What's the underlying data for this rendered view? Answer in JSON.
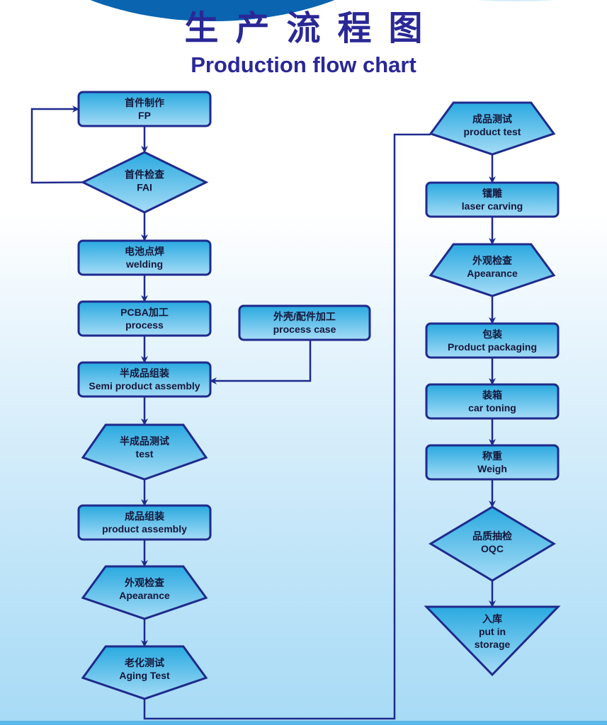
{
  "title": {
    "chinese": "生产流程图",
    "english": "Production flow chart"
  },
  "colors": {
    "node_fill_top": "#29a9e0",
    "node_fill_bottom": "#a6dcf6",
    "stroke": "#1e2a8c",
    "title": "#2a2896"
  },
  "nodes": [
    {
      "id": "fp",
      "shape": "rect",
      "cn": "首件制作",
      "en": [
        "FP"
      ]
    },
    {
      "id": "fai",
      "shape": "diamond",
      "cn": "首件检查",
      "en": [
        "FAI"
      ]
    },
    {
      "id": "welding",
      "shape": "rect",
      "cn": "电池点焊",
      "en": [
        "welding"
      ]
    },
    {
      "id": "pcba",
      "shape": "rect",
      "cn": "PCBA加工",
      "en": [
        "process"
      ]
    },
    {
      "id": "case",
      "shape": "rect",
      "cn": "外壳/配件加工",
      "en": [
        "process case"
      ]
    },
    {
      "id": "semi",
      "shape": "rect",
      "cn": "半成品组装",
      "en": [
        "Semi product assembly"
      ]
    },
    {
      "id": "semitest",
      "shape": "pentagon",
      "cn": "半成品测试",
      "en": [
        "test"
      ]
    },
    {
      "id": "assembly",
      "shape": "rect",
      "cn": "成品组装",
      "en": [
        "product assembly"
      ]
    },
    {
      "id": "appear1",
      "shape": "pentagon",
      "cn": "外观检查",
      "en": [
        "Apearance"
      ]
    },
    {
      "id": "aging",
      "shape": "pentagon",
      "cn": "老化测试",
      "en": [
        "Aging Test"
      ]
    },
    {
      "id": "ptest",
      "shape": "pentagon",
      "cn": "成品测试",
      "en": [
        "product test"
      ]
    },
    {
      "id": "laser",
      "shape": "rect",
      "cn": "镭雕",
      "en": [
        "laser carving"
      ]
    },
    {
      "id": "appear2",
      "shape": "pentagon",
      "cn": "外观检查",
      "en": [
        "Apearance"
      ]
    },
    {
      "id": "packaging",
      "shape": "rect",
      "cn": "包装",
      "en": [
        "Product packaging"
      ]
    },
    {
      "id": "carton",
      "shape": "rect",
      "cn": "装箱",
      "en": [
        "car toning"
      ]
    },
    {
      "id": "weigh",
      "shape": "rect",
      "cn": "称重",
      "en": [
        "Weigh"
      ]
    },
    {
      "id": "oqc",
      "shape": "diamond",
      "cn": "品质抽检",
      "en": [
        "OQC"
      ]
    },
    {
      "id": "storage",
      "shape": "triangle",
      "cn": "入库",
      "en": [
        "put in",
        "storage"
      ]
    }
  ],
  "edges": [
    [
      "fp",
      "fai"
    ],
    [
      "fai",
      "fp"
    ],
    [
      "fai",
      "welding"
    ],
    [
      "welding",
      "pcba"
    ],
    [
      "pcba",
      "semi"
    ],
    [
      "case",
      "semi"
    ],
    [
      "semi",
      "semitest"
    ],
    [
      "semitest",
      "assembly"
    ],
    [
      "assembly",
      "appear1"
    ],
    [
      "appear1",
      "aging"
    ],
    [
      "aging",
      "ptest"
    ],
    [
      "ptest",
      "laser"
    ],
    [
      "laser",
      "appear2"
    ],
    [
      "appear2",
      "packaging"
    ],
    [
      "packaging",
      "carton"
    ],
    [
      "carton",
      "weigh"
    ],
    [
      "weigh",
      "oqc"
    ],
    [
      "oqc",
      "storage"
    ]
  ]
}
